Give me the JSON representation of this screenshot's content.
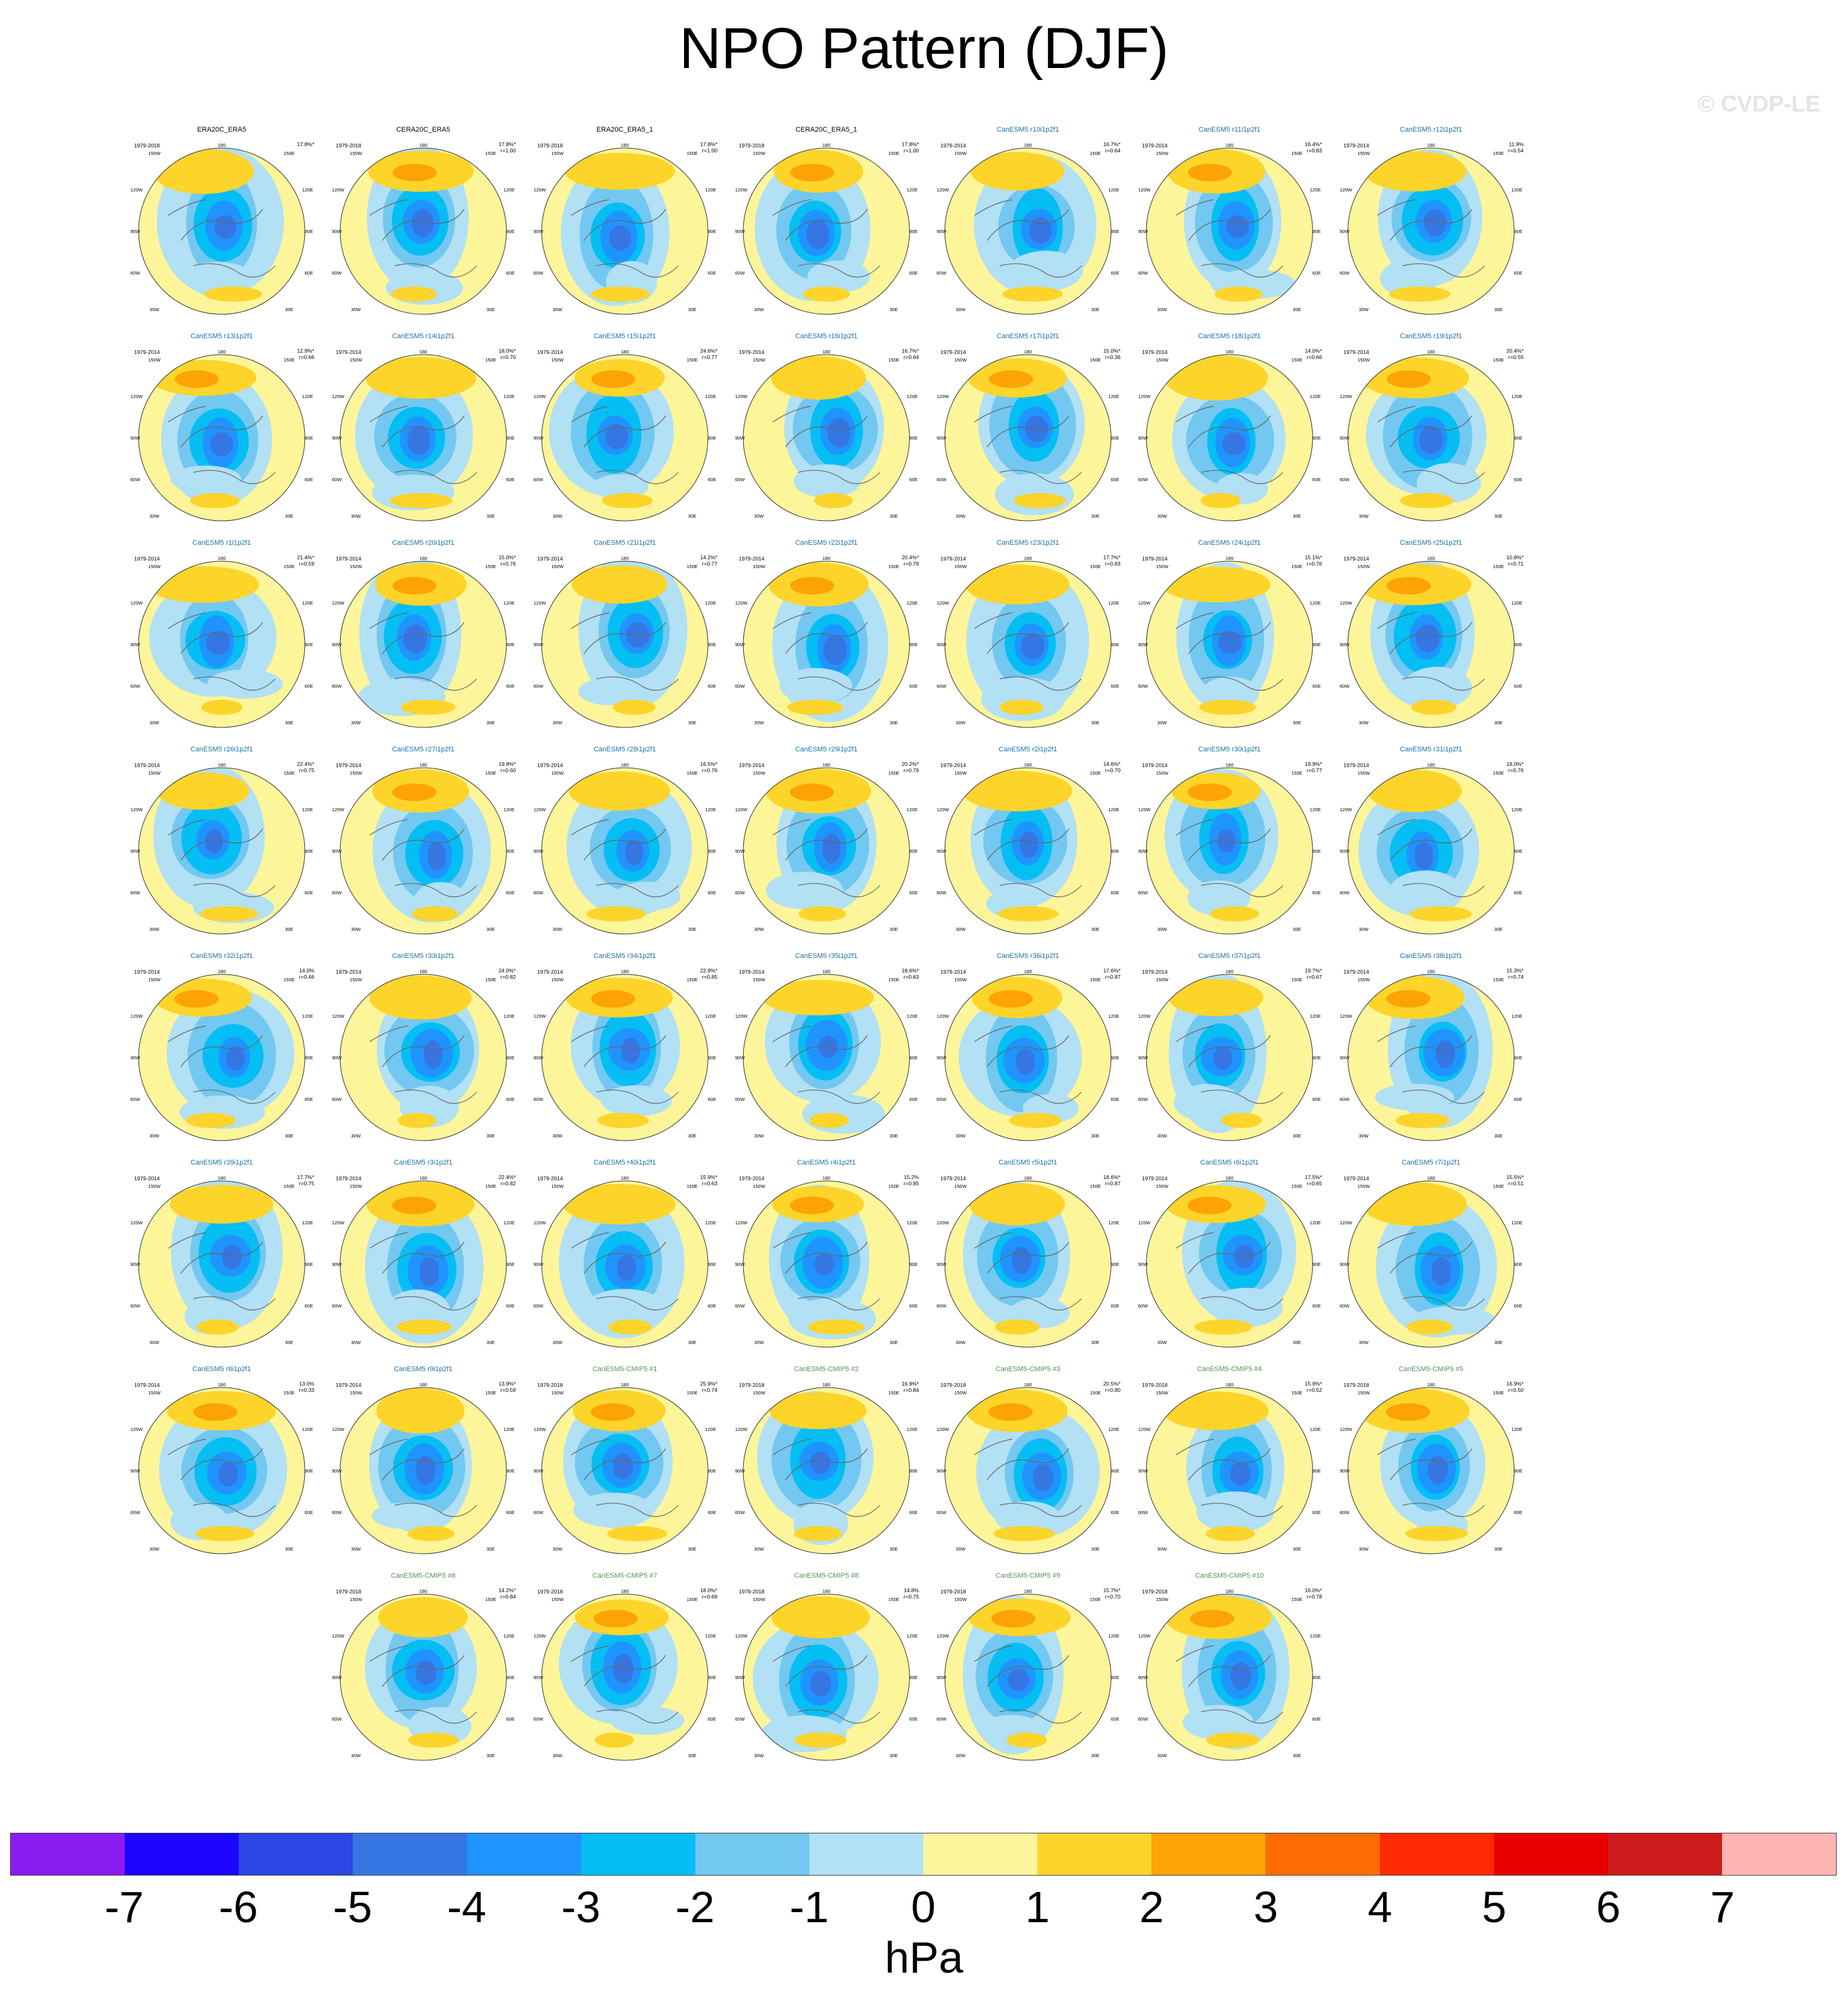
{
  "title": "NPO Pattern (DJF)",
  "watermark": "© CVDP-LE",
  "units": "hPa",
  "colorbar": {
    "colors": [
      "#8b1cf0",
      "#1c05ff",
      "#2a46e6",
      "#3676e2",
      "#1f94ff",
      "#05bef4",
      "#72c8f0",
      "#b2e0f4",
      "#fdf59a",
      "#fdd42a",
      "#fda306",
      "#fd6b05",
      "#ff2a02",
      "#e80000",
      "#cc1c1c",
      "#ffb4b4"
    ],
    "labels": [
      "-7",
      "-6",
      "-5",
      "-4",
      "-3",
      "-2",
      "-1",
      "0",
      "1",
      "2",
      "3",
      "4",
      "5",
      "6",
      "7"
    ]
  },
  "lon_labels": {
    "top": "180",
    "bottom": "0",
    "upper_left": "150W",
    "upper_right": "150E",
    "left_high": "120W",
    "right_high": "120E",
    "left_mid": "90W",
    "right_mid": "90E",
    "left_low": "60W",
    "right_low": "60E",
    "lower_left": "30W",
    "lower_right": "30E"
  },
  "panels": [
    {
      "title": "ERA20C_ERA5",
      "period": "1979-2018",
      "pct": "17.8%*",
      "r": "",
      "kind": "obs"
    },
    {
      "title": "CERA20C_ERA5",
      "period": "1979-2018",
      "pct": "17.8%*",
      "r": "r=1.00",
      "kind": "obs"
    },
    {
      "title": "ERA20C_ERA5_1",
      "period": "1979-2018",
      "pct": "17.8%*",
      "r": "r=1.00",
      "kind": "obs"
    },
    {
      "title": "CERA20C_ERA5_1",
      "period": "1979-2018",
      "pct": "17.8%*",
      "r": "r=1.00",
      "kind": "obs"
    },
    {
      "title": "CanESM5 r10i1p2f1",
      "period": "1979-2014",
      "pct": "16.7%*",
      "r": "r=0.64",
      "kind": "le"
    },
    {
      "title": "CanESM5 r11i1p2f1",
      "period": "1979-2014",
      "pct": "16.4%*",
      "r": "r=0.83",
      "kind": "le"
    },
    {
      "title": "CanESM5 r12i1p2f1",
      "period": "1979-2014",
      "pct": "11.9%",
      "r": "r=0.54",
      "kind": "le"
    },
    {
      "title": "CanESM5 r13i1p2f1",
      "period": "1979-2014",
      "pct": "12.9%*",
      "r": "r=0.66",
      "kind": "le"
    },
    {
      "title": "CanESM5 r14i1p2f1",
      "period": "1979-2014",
      "pct": "18.0%*",
      "r": "r=0.70",
      "kind": "le"
    },
    {
      "title": "CanESM5 r15i1p2f1",
      "period": "1979-2014",
      "pct": "24.6%*",
      "r": "r=0.77",
      "kind": "le"
    },
    {
      "title": "CanESM5 r16i1p2f1",
      "period": "1979-2014",
      "pct": "16.7%*",
      "r": "r=0.64",
      "kind": "le"
    },
    {
      "title": "CanESM5 r17i1p2f1",
      "period": "1979-2014",
      "pct": "15.0%*",
      "r": "r=0.36",
      "kind": "le"
    },
    {
      "title": "CanESM5 r18i1p2f1",
      "period": "1979-2014",
      "pct": "14.0%*",
      "r": "r=0.66",
      "kind": "le"
    },
    {
      "title": "CanESM5 r19i1p2f1",
      "period": "1979-2014",
      "pct": "20.4%*",
      "r": "r=0.55",
      "kind": "le"
    },
    {
      "title": "CanESM5 r1i1p2f1",
      "period": "1979-2014",
      "pct": "21.4%*",
      "r": "r=0.59",
      "kind": "le"
    },
    {
      "title": "CanESM5 r20i1p2f1",
      "period": "1979-2014",
      "pct": "15.0%*",
      "r": "r=0.76",
      "kind": "le"
    },
    {
      "title": "CanESM5 r21i1p2f1",
      "period": "1979-2014",
      "pct": "14.2%*",
      "r": "r=0.77",
      "kind": "le"
    },
    {
      "title": "CanESM5 r22i1p2f1",
      "period": "1979-2014",
      "pct": "20.4%*",
      "r": "r=0.79",
      "kind": "le"
    },
    {
      "title": "CanESM5 r23i1p2f1",
      "period": "1979-2014",
      "pct": "17.7%*",
      "r": "r=0.83",
      "kind": "le"
    },
    {
      "title": "CanESM5 r24i1p2f1",
      "period": "1979-2014",
      "pct": "15.1%*",
      "r": "r=0.76",
      "kind": "le"
    },
    {
      "title": "CanESM5 r25i1p2f1",
      "period": "1979-2014",
      "pct": "10.8%*",
      "r": "r=0.71",
      "kind": "le"
    },
    {
      "title": "CanESM5 r26i1p2f1",
      "period": "1979-2014",
      "pct": "22.4%*",
      "r": "r=0.75",
      "kind": "le"
    },
    {
      "title": "CanESM5 r27i1p2f1",
      "period": "1979-2014",
      "pct": "19.8%*",
      "r": "r=0.60",
      "kind": "le"
    },
    {
      "title": "CanESM5 r28i1p2f1",
      "period": "1979-2014",
      "pct": "16.5%*",
      "r": "r=0.76",
      "kind": "le"
    },
    {
      "title": "CanESM5 r29i1p2f1",
      "period": "1979-2014",
      "pct": "20.2%*",
      "r": "r=0.79",
      "kind": "le"
    },
    {
      "title": "CanESM5 r2i1p2f1",
      "period": "1979-2014",
      "pct": "14.6%*",
      "r": "r=0.70",
      "kind": "le"
    },
    {
      "title": "CanESM5 r30i1p2f1",
      "period": "1979-2014",
      "pct": "19.9%*",
      "r": "r=0.77",
      "kind": "le"
    },
    {
      "title": "CanESM5 r31i1p2f1",
      "period": "1979-2014",
      "pct": "18.0%*",
      "r": "r=0.76",
      "kind": "le"
    },
    {
      "title": "CanESM5 r32i1p2f1",
      "period": "1979-2014",
      "pct": "14.0%",
      "r": "r=0.46",
      "kind": "le"
    },
    {
      "title": "CanESM5 r33i1p2f1",
      "period": "1979-2014",
      "pct": "24.0%*",
      "r": "r=0.82",
      "kind": "le"
    },
    {
      "title": "CanESM5 r34i1p2f1",
      "period": "1979-2014",
      "pct": "22.9%*",
      "r": "r=0.85",
      "kind": "le"
    },
    {
      "title": "CanESM5 r35i1p2f1",
      "period": "1979-2014",
      "pct": "18.6%*",
      "r": "r=0.63",
      "kind": "le"
    },
    {
      "title": "CanESM5 r36i1p2f1",
      "period": "1979-2014",
      "pct": "17.6%*",
      "r": "r=0.87",
      "kind": "le"
    },
    {
      "title": "CanESM5 r37i1p2f1",
      "period": "1979-2014",
      "pct": "19.7%*",
      "r": "r=0.67",
      "kind": "le"
    },
    {
      "title": "CanESM5 r38i1p2f1",
      "period": "1979-2014",
      "pct": "15.3%*",
      "r": "r=0.74",
      "kind": "le"
    },
    {
      "title": "CanESM5 r39i1p2f1",
      "period": "1979-2014",
      "pct": "17.7%*",
      "r": "r=0.75",
      "kind": "le"
    },
    {
      "title": "CanESM5 r3i1p2f1",
      "period": "1979-2014",
      "pct": "22.4%*",
      "r": "r=0.82",
      "kind": "le"
    },
    {
      "title": "CanESM5 r40i1p2f1",
      "period": "1979-2014",
      "pct": "15.9%*",
      "r": "r=0.63",
      "kind": "le"
    },
    {
      "title": "CanESM5 r4i1p2f1",
      "period": "1979-2014",
      "pct": "15.2%",
      "r": "r=0.85",
      "kind": "le"
    },
    {
      "title": "CanESM5 r5i1p2f1",
      "period": "1979-2014",
      "pct": "18.6%*",
      "r": "r=0.87",
      "kind": "le"
    },
    {
      "title": "CanESM5 r6i1p2f1",
      "period": "1979-2014",
      "pct": "17.5%*",
      "r": "r=0.65",
      "kind": "le"
    },
    {
      "title": "CanESM5 r7i1p2f1",
      "period": "1979-2014",
      "pct": "15.5%*",
      "r": "r=0.51",
      "kind": "le"
    },
    {
      "title": "CanESM5 r8i1p2f1",
      "period": "1979-2014",
      "pct": "13.0%",
      "r": "r=0.33",
      "kind": "le"
    },
    {
      "title": "CanESM5 r9i1p2f1",
      "period": "1979-2014",
      "pct": "13.9%*",
      "r": "r=0.59",
      "kind": "le"
    },
    {
      "title": "CanESM5-CMIP5 #1",
      "period": "1979-2018",
      "pct": "25.9%*",
      "r": "r=0.74",
      "kind": "cm"
    },
    {
      "title": "CanESM5-CMIP5 #2",
      "period": "1979-2018",
      "pct": "16.9%*",
      "r": "r=0.84",
      "kind": "cm"
    },
    {
      "title": "CanESM5-CMIP5 #3",
      "period": "1979-2018",
      "pct": "20.5%*",
      "r": "r=0.80",
      "kind": "cm"
    },
    {
      "title": "CanESM5-CMIP5 #4",
      "period": "1979-2018",
      "pct": "15.9%*",
      "r": "r=0.52",
      "kind": "cm"
    },
    {
      "title": "CanESM5-CMIP5 #5",
      "period": "1979-2018",
      "pct": "16.9%*",
      "r": "r=0.50",
      "kind": "cm"
    },
    {
      "title": "CanESM5-CMIP5 #6",
      "period": "1979-2018",
      "pct": "14.2%*",
      "r": "r=0.84",
      "kind": "cm"
    },
    {
      "title": "CanESM5-CMIP5 #7",
      "period": "1979-2018",
      "pct": "18.0%*",
      "r": "r=0.69",
      "kind": "cm"
    },
    {
      "title": "CanESM5-CMIP5 #8",
      "period": "1979-2018",
      "pct": "14.8%",
      "r": "r=0.75",
      "kind": "cm"
    },
    {
      "title": "CanESM5-CMIP5 #9",
      "period": "1979-2018",
      "pct": "15.7%*",
      "r": "r=0.70",
      "kind": "cm"
    },
    {
      "title": "CanESM5-CMIP5 #10",
      "period": "1979-2018",
      "pct": "16.0%*",
      "r": "r=0.78",
      "kind": "cm"
    }
  ]
}
